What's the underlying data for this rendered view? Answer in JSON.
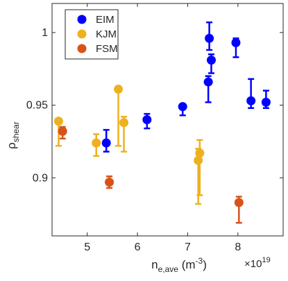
{
  "chart_data": {
    "type": "scatter",
    "xlabel": "n",
    "xlabel_sub": "e,ave",
    "xlabel_unit": " (m",
    "xlabel_unit_sup": "-3",
    "xlabel_unit_close": ")",
    "x_multiplier_base": "×10",
    "x_multiplier_exp": "19",
    "ylabel": "ρ",
    "ylabel_sub": "shear",
    "xlim": [
      4.3,
      8.9
    ],
    "ylim": [
      0.86,
      1.02
    ],
    "xticks": [
      5,
      6,
      7,
      8
    ],
    "xtick_labels": [
      "5",
      "6",
      "7",
      "8"
    ],
    "yticks": [
      0.9,
      0.95,
      1.0
    ],
    "ytick_labels": [
      "0.9",
      "0.95",
      "1"
    ],
    "legend_position": "top-left",
    "series": [
      {
        "name": "EIM",
        "color": "#0000ff",
        "points": [
          {
            "x": 5.38,
            "y": 0.924,
            "lo": 0.918,
            "hi": 0.933
          },
          {
            "x": 6.19,
            "y": 0.94,
            "lo": 0.934,
            "hi": 0.944
          },
          {
            "x": 6.9,
            "y": 0.949,
            "lo": 0.943,
            "hi": 0.95
          },
          {
            "x": 7.41,
            "y": 0.966,
            "lo": 0.952,
            "hi": 0.97
          },
          {
            "x": 7.43,
            "y": 0.996,
            "lo": 0.988,
            "hi": 1.007
          },
          {
            "x": 7.47,
            "y": 0.981,
            "lo": 0.972,
            "hi": 0.985
          },
          {
            "x": 7.96,
            "y": 0.993,
            "lo": 0.983,
            "hi": 0.996
          },
          {
            "x": 8.26,
            "y": 0.953,
            "lo": 0.948,
            "hi": 0.968
          },
          {
            "x": 8.56,
            "y": 0.952,
            "lo": 0.948,
            "hi": 0.96
          }
        ]
      },
      {
        "name": "KJM",
        "color": "#edb120",
        "points": [
          {
            "x": 4.43,
            "y": 0.939,
            "lo": 0.922,
            "hi": 0.94
          },
          {
            "x": 5.18,
            "y": 0.924,
            "lo": 0.915,
            "hi": 0.93
          },
          {
            "x": 5.62,
            "y": 0.961,
            "lo": 0.922,
            "hi": 0.962
          },
          {
            "x": 5.73,
            "y": 0.938,
            "lo": 0.918,
            "hi": 0.942
          },
          {
            "x": 7.21,
            "y": 0.912,
            "lo": 0.882,
            "hi": 0.92
          },
          {
            "x": 7.24,
            "y": 0.917,
            "lo": 0.888,
            "hi": 0.926
          }
        ]
      },
      {
        "name": "FSM",
        "color": "#d95319",
        "points": [
          {
            "x": 4.51,
            "y": 0.932,
            "lo": 0.927,
            "hi": 0.935
          },
          {
            "x": 5.44,
            "y": 0.897,
            "lo": 0.893,
            "hi": 0.901
          },
          {
            "x": 8.02,
            "y": 0.883,
            "lo": 0.869,
            "hi": 0.887
          }
        ]
      }
    ]
  }
}
